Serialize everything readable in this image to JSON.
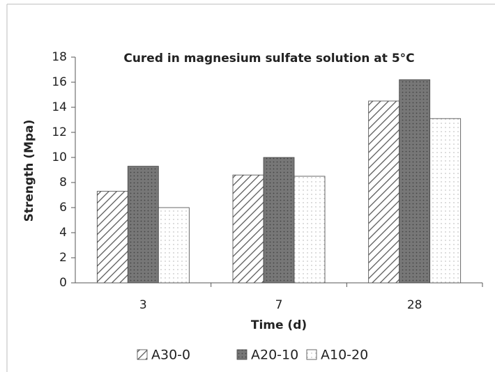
{
  "chart_data": {
    "type": "bar",
    "title": "Cured in magnesium sulfate solution  at 5°C",
    "x_label": "Time (d)",
    "y_label": "Strength (Mpa)",
    "categories": [
      "3",
      "7",
      "28"
    ],
    "series": [
      {
        "name": "A30-0",
        "color": "#555555",
        "values": [
          7.3,
          8.6,
          14.5
        ]
      },
      {
        "name": "A20-10",
        "color": "#777777",
        "values": [
          9.3,
          10.0,
          16.2
        ]
      },
      {
        "name": "A10-20",
        "color": "#ffffff",
        "values": [
          6.0,
          8.5,
          13.1
        ]
      }
    ],
    "ylim": [
      0,
      18
    ],
    "yticks": [
      0,
      2,
      4,
      6,
      8,
      10,
      12,
      14,
      16,
      18
    ],
    "legend": "bottom"
  }
}
